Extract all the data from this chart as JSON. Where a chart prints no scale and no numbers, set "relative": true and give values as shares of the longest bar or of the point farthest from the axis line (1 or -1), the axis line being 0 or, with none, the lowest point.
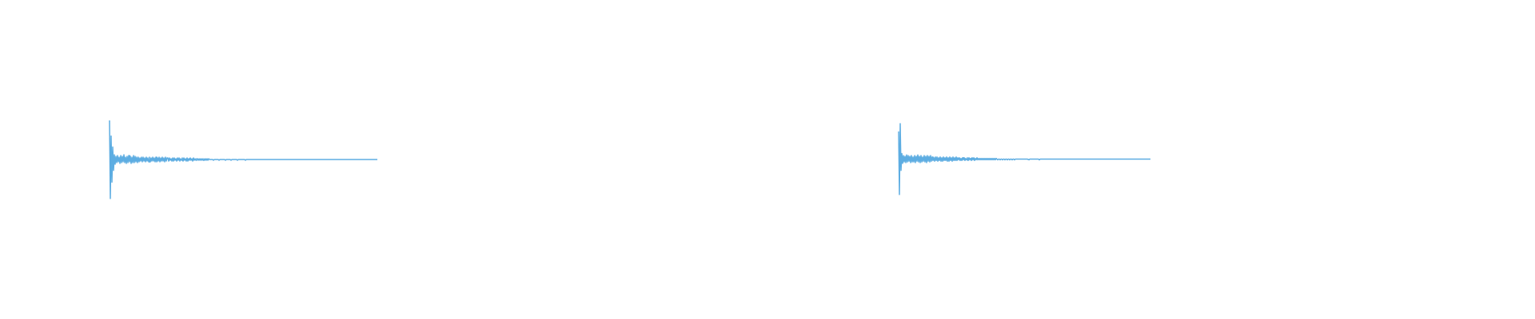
{
  "chart_data": [
    {
      "type": "line",
      "relative": true,
      "color": "#5dade2",
      "categories": [
        null,
        null,
        null,
        null,
        null,
        null,
        null,
        null,
        null,
        null,
        null,
        null,
        null,
        null,
        null,
        null,
        null,
        null,
        null,
        null,
        null,
        null,
        null,
        null,
        null,
        null,
        null,
        null,
        null,
        null,
        null,
        null,
        null,
        null,
        null,
        null,
        null,
        null,
        null,
        null,
        null,
        null,
        null,
        null,
        null,
        null,
        null,
        null,
        null,
        null,
        null,
        null,
        null,
        null,
        null,
        null,
        null,
        null,
        null,
        null,
        null,
        null,
        null,
        null,
        null,
        null,
        null,
        null,
        null,
        null,
        null,
        null,
        null,
        null,
        null,
        null,
        null,
        null,
        null,
        null,
        null,
        null,
        null,
        null,
        null,
        null,
        null,
        null,
        null,
        null,
        null,
        null,
        null,
        null,
        null,
        null,
        null,
        null,
        null,
        null,
        null,
        null,
        null,
        null,
        null,
        null,
        null,
        null,
        null,
        null,
        null,
        null,
        null,
        null,
        null,
        null,
        null,
        null,
        null,
        null,
        null,
        null,
        null,
        null,
        null,
        null,
        null,
        null,
        null,
        null,
        null,
        null,
        null,
        null,
        null,
        null,
        null,
        null,
        null,
        null,
        null,
        null,
        null,
        null,
        null,
        null,
        null,
        null,
        null,
        null,
        null,
        null,
        null,
        null,
        null,
        null,
        null,
        null,
        null,
        null,
        null,
        null,
        null,
        null,
        null,
        null,
        null,
        null,
        null,
        null,
        null,
        null,
        null,
        null,
        null,
        null,
        null,
        null,
        null,
        null,
        null,
        null,
        null,
        null,
        null,
        null,
        null,
        null,
        null,
        null,
        null,
        null,
        null,
        null,
        null,
        null,
        null,
        null,
        null,
        null,
        null,
        null,
        null,
        null,
        null,
        null,
        null,
        null,
        null,
        null,
        null,
        null,
        null,
        null,
        null,
        null,
        null,
        null,
        null,
        null,
        null,
        null,
        null,
        null,
        null,
        null,
        null,
        null,
        null,
        null,
        null,
        null,
        null,
        null,
        null,
        null,
        null,
        null,
        null,
        null,
        null,
        null,
        null,
        null,
        null,
        null,
        null,
        null,
        null,
        null,
        null,
        null,
        null,
        null,
        null,
        null,
        null,
        null,
        null,
        null,
        null,
        null,
        null,
        null,
        null,
        null,
        null,
        null,
        null,
        null,
        null,
        null,
        null,
        null,
        null,
        null,
        null,
        null,
        null,
        null,
        null,
        null,
        null,
        null,
        null,
        null,
        null,
        null,
        null,
        null,
        null,
        null,
        null,
        null,
        null,
        null,
        null,
        null,
        null,
        null,
        null,
        null,
        null,
        null,
        null,
        null,
        null,
        null,
        null,
        null,
        null,
        null,
        null,
        null,
        null,
        null,
        null,
        null,
        null,
        null,
        null,
        null,
        null,
        null,
        null,
        null,
        null,
        null,
        null,
        null,
        null,
        null,
        null,
        null,
        null,
        null
      ],
      "values": [
        1,
        0,
        0.8,
        0.21,
        0.66,
        0.36,
        0.56,
        0.44,
        0.54,
        0.46,
        0.55,
        0.47,
        0.53,
        0.45,
        0.55,
        0.46,
        0.54,
        0.47,
        0.56,
        0.46,
        0.53,
        0.45,
        0.54,
        0.46,
        0.55,
        0.47,
        0.54,
        0.45,
        0.53,
        0.46,
        0.55,
        0.46,
        0.54,
        0.47,
        0.53,
        0.46,
        0.53,
        0.47,
        0.52,
        0.48,
        0.53,
        0.47,
        0.53,
        0.48,
        0.52,
        0.47,
        0.53,
        0.48,
        0.52,
        0.47,
        0.53,
        0.47,
        0.52,
        0.48,
        0.53,
        0.48,
        0.52,
        0.47,
        0.53,
        0.47,
        0.52,
        0.48,
        0.53,
        0.47,
        0.52,
        0.48,
        0.53,
        0.48,
        0.52,
        0.47,
        0.53,
        0.48,
        0.52,
        0.52,
        0.48,
        0.52,
        0.49,
        0.51,
        0.48,
        0.52,
        0.48,
        0.52,
        0.49,
        0.51,
        0.48,
        0.52,
        0.49,
        0.52,
        0.48,
        0.51,
        0.49,
        0.52,
        0.48,
        0.52,
        0.49,
        0.51,
        0.48,
        0.52,
        0.48,
        0.51,
        0.49,
        0.52,
        0.49,
        0.51,
        0.48,
        0.52,
        0.49,
        0.51,
        0.49,
        0.51,
        0.51,
        0.49,
        0.51,
        0.49,
        0.51,
        0.49,
        0.51,
        0.49,
        0.51,
        0.49,
        0.51,
        0.49,
        0.51,
        0.49,
        0.51,
        0.5,
        0.5,
        0.5,
        0.5,
        0.5,
        0.49,
        0.5,
        0.5,
        0.5,
        0.5,
        0.5,
        0.5,
        0.49,
        0.5,
        0.5,
        0.5,
        0.5,
        0.5,
        0.5,
        0.5,
        0.49,
        0.5,
        0.5,
        0.5,
        0.5,
        0.5,
        0.5,
        0.49,
        0.5,
        0.5,
        0.5,
        0.5,
        0.5,
        0.5,
        0.5,
        0.49,
        0.5,
        0.5,
        0.5,
        0.5,
        0.5,
        0.5,
        0.5,
        0.5,
        0.5,
        0.49,
        0.5,
        0.5,
        0.5,
        0.5,
        0.5,
        0.5,
        0.5,
        0.5,
        0.5,
        0.5,
        0.5,
        0.5,
        0.5,
        0.5,
        0.5,
        0.5,
        0.5,
        0.5,
        0.5,
        0.5,
        0.5,
        0.5,
        0.5,
        0.5,
        0.5,
        0.5,
        0.5,
        0.5,
        0.5,
        0.5,
        0.5,
        0.5,
        0.5,
        0.5,
        0.5,
        0.5,
        0.5,
        0.5,
        0.5,
        0.5,
        0.5,
        0.5,
        0.5,
        0.5,
        0.5,
        0.5,
        0.5,
        0.5,
        0.5,
        0.5,
        0.5,
        0.5,
        0.5,
        0.5,
        0.5,
        0.5,
        0.5,
        0.5,
        0.5,
        0.5,
        0.5,
        0.5,
        0.5,
        0.5,
        0.5,
        0.5,
        0.5,
        0.5,
        0.5,
        0.5,
        0.5,
        0.5,
        0.5,
        0.5,
        0.5,
        0.5,
        0.5,
        0.5,
        0.5,
        0.5,
        0.5,
        0.5,
        0.5,
        0.5,
        0.5,
        0.5,
        0.5,
        0.5,
        0.5,
        0.5,
        0.5,
        0.5,
        0.5,
        0.5,
        0.5,
        0.5,
        0.5,
        0.5,
        0.5,
        0.5,
        0.5,
        0.5,
        0.5,
        0.5,
        0.5,
        0.5,
        0.5,
        0.5,
        0.5,
        0.5,
        0.5,
        0.5,
        0.5,
        0.5,
        0.5,
        0.5,
        0.5,
        0.5,
        0.5,
        0.5,
        0.5,
        0.5,
        0.5,
        0.5,
        0.5,
        0.5,
        0.5,
        0.5,
        0.5,
        0.5,
        0.5,
        0.5,
        0.5,
        0.5,
        0.5,
        0.5,
        0.5,
        0.5,
        0.5,
        0.5,
        0.5,
        0.5,
        0.5,
        0.5,
        0.5,
        0.5,
        0.5,
        0.5,
        0.5,
        0.5,
        0.5,
        0.5,
        0.5,
        0.5,
        0.5,
        0.5,
        0.5,
        0.5,
        0.5,
        0.5,
        0.5,
        0.5,
        0.5,
        0.5,
        0.5
      ]
    },
    {
      "type": "line",
      "relative": true,
      "color": "#5dade2",
      "categories": [
        null,
        null,
        null,
        null,
        null,
        null,
        null,
        null,
        null,
        null,
        null,
        null,
        null,
        null,
        null,
        null,
        null,
        null,
        null,
        null,
        null,
        null,
        null,
        null,
        null,
        null,
        null,
        null,
        null,
        null,
        null,
        null,
        null,
        null,
        null,
        null,
        null,
        null,
        null,
        null,
        null,
        null,
        null,
        null,
        null,
        null,
        null,
        null,
        null,
        null,
        null,
        null,
        null,
        null,
        null,
        null,
        null,
        null,
        null,
        null,
        null,
        null,
        null,
        null,
        null,
        null,
        null,
        null,
        null,
        null,
        null,
        null,
        null,
        null,
        null,
        null,
        null,
        null,
        null,
        null,
        null,
        null,
        null,
        null,
        null,
        null,
        null,
        null,
        null,
        null,
        null,
        null,
        null,
        null,
        null,
        null,
        null,
        null,
        null,
        null,
        null,
        null,
        null,
        null,
        null,
        null,
        null,
        null,
        null,
        null,
        null,
        null,
        null,
        null,
        null,
        null,
        null,
        null,
        null,
        null,
        null,
        null,
        null,
        null,
        null,
        null,
        null,
        null,
        null,
        null,
        null,
        null,
        null,
        null,
        null,
        null,
        null,
        null,
        null,
        null,
        null,
        null,
        null,
        null,
        null,
        null,
        null,
        null,
        null,
        null,
        null,
        null,
        null,
        null,
        null,
        null,
        null,
        null,
        null,
        null,
        null,
        null,
        null,
        null,
        null,
        null,
        null,
        null,
        null,
        null,
        null,
        null,
        null,
        null,
        null,
        null,
        null,
        null,
        null,
        null,
        null,
        null,
        null,
        null,
        null,
        null,
        null,
        null,
        null,
        null,
        null,
        null,
        null,
        null,
        null,
        null,
        null,
        null,
        null,
        null,
        null,
        null,
        null,
        null,
        null,
        null,
        null,
        null,
        null,
        null,
        null,
        null,
        null,
        null,
        null,
        null,
        null,
        null,
        null,
        null,
        null,
        null,
        null,
        null,
        null,
        null,
        null,
        null,
        null,
        null,
        null,
        null,
        null,
        null,
        null,
        null,
        null,
        null,
        null,
        null,
        null,
        null,
        null,
        null,
        null,
        null,
        null,
        null,
        null,
        null,
        null,
        null,
        null,
        null,
        null,
        null,
        null,
        null,
        null,
        null,
        null,
        null,
        null,
        null,
        null,
        null,
        null,
        null,
        null,
        null,
        null,
        null,
        null,
        null,
        null,
        null,
        null,
        null,
        null,
        null,
        null,
        null,
        null,
        null,
        null,
        null,
        null,
        null,
        null,
        null,
        null,
        null,
        null,
        null,
        null,
        null,
        null,
        null,
        null,
        null,
        null,
        null,
        null,
        null,
        null,
        null,
        null,
        null,
        null,
        null,
        null,
        null,
        null,
        null,
        null,
        null
      ],
      "values": [
        0.89,
        0,
        1,
        0.34,
        0.58,
        0.44,
        0.55,
        0.46,
        0.54,
        0.45,
        0.56,
        0.46,
        0.55,
        0.47,
        0.54,
        0.45,
        0.55,
        0.46,
        0.53,
        0.46,
        0.55,
        0.45,
        0.54,
        0.47,
        0.56,
        0.46,
        0.54,
        0.45,
        0.55,
        0.46,
        0.53,
        0.47,
        0.55,
        0.46,
        0.54,
        0.45,
        0.55,
        0.47,
        0.54,
        0.46,
        0.55,
        0.47,
        0.53,
        0.48,
        0.52,
        0.47,
        0.53,
        0.48,
        0.53,
        0.47,
        0.52,
        0.48,
        0.53,
        0.47,
        0.52,
        0.47,
        0.53,
        0.48,
        0.52,
        0.48,
        0.53,
        0.47,
        0.52,
        0.47,
        0.53,
        0.48,
        0.52,
        0.47,
        0.53,
        0.48,
        0.52,
        0.48,
        0.53,
        0.48,
        0.52,
        0.49,
        0.52,
        0.48,
        0.51,
        0.48,
        0.52,
        0.49,
        0.52,
        0.48,
        0.51,
        0.49,
        0.52,
        0.48,
        0.52,
        0.49,
        0.51,
        0.48,
        0.52,
        0.49,
        0.52,
        0.48,
        0.51,
        0.49,
        0.52,
        0.49,
        0.51,
        0.49,
        0.51,
        0.49,
        0.51,
        0.49,
        0.51,
        0.49,
        0.51,
        0.49,
        0.51,
        0.49,
        0.51,
        0.49,
        0.51,
        0.49,
        0.51,
        0.49,
        0.51,
        0.49,
        0.51,
        0.49,
        0.51,
        0.5,
        0.49,
        0.5,
        0.5,
        0.49,
        0.5,
        0.5,
        0.49,
        0.5,
        0.5,
        0.49,
        0.5,
        0.5,
        0.49,
        0.5,
        0.5,
        0.49,
        0.5,
        0.5,
        0.49,
        0.5,
        0.5,
        0.49,
        0.5,
        0.5,
        0.5,
        0.5,
        0.5,
        0.5,
        0.5,
        0.5,
        0.5,
        0.5,
        0.5,
        0.5,
        0.5,
        0.5,
        0.5,
        0.5,
        0.5,
        0.49,
        0.5,
        0.5,
        0.5,
        0.5,
        0.5,
        0.5,
        0.5,
        0.5,
        0.5,
        0.5,
        0.5,
        0.5,
        0.49,
        0.5,
        0.5,
        0.5,
        0.5,
        0.5,
        0.5,
        0.5,
        0.5,
        0.5,
        0.5,
        0.5,
        0.5,
        0.5,
        0.5,
        0.5,
        0.5,
        0.5,
        0.5,
        0.5,
        0.5,
        0.5,
        0.5,
        0.5,
        0.5,
        0.5,
        0.5,
        0.5,
        0.5,
        0.5,
        0.5,
        0.5,
        0.5,
        0.5,
        0.5,
        0.5,
        0.5,
        0.5,
        0.5,
        0.5,
        0.5,
        0.5,
        0.5,
        0.5,
        0.5,
        0.5,
        0.5,
        0.5,
        0.5,
        0.5,
        0.5,
        0.5,
        0.5,
        0.5,
        0.5,
        0.5,
        0.5,
        0.5,
        0.5,
        0.5,
        0.5,
        0.5,
        0.5,
        0.5,
        0.5,
        0.5,
        0.5,
        0.5,
        0.5,
        0.5,
        0.5,
        0.5,
        0.5,
        0.5,
        0.5,
        0.5,
        0.5,
        0.5,
        0.5,
        0.5,
        0.5,
        0.5,
        0.5,
        0.5,
        0.5,
        0.5,
        0.5,
        0.5,
        0.5,
        0.5,
        0.5,
        0.5,
        0.5,
        0.5,
        0.5,
        0.5,
        0.5,
        0.5,
        0.5,
        0.5,
        0.5,
        0.5,
        0.5,
        0.5,
        0.5,
        0.5,
        0.5,
        0.5,
        0.5,
        0.5,
        0.5,
        0.5,
        0.5,
        0.5,
        0.5,
        0.5,
        0.5,
        0.5,
        0.5,
        0.5,
        0.5,
        0.5,
        0.5,
        0.5,
        0.5,
        0.5,
        0.5,
        0.5,
        0.5,
        0.5,
        0.5,
        0.5,
        0.5,
        0.5,
        0.5,
        0.5,
        0.5,
        0.5,
        0.5,
        0.5
      ]
    }
  ]
}
